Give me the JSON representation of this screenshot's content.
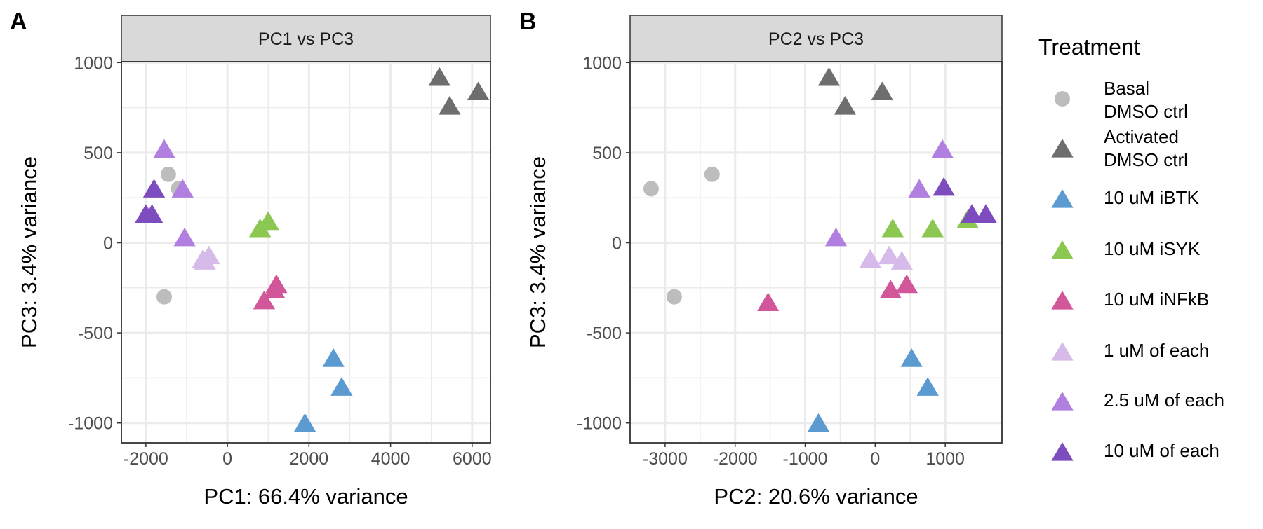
{
  "figure": {
    "colors": {
      "panel_border": "#333333",
      "strip_fill": "#d9d9d9",
      "grid": "#ebebeb",
      "tick_label": "#4d4d4d"
    }
  },
  "legend": {
    "title": "Treatment",
    "items": [
      {
        "key": "basal",
        "lines": [
          "Basal",
          "DMSO ctrl"
        ],
        "shape": "circle",
        "color": "#bdbdbd"
      },
      {
        "key": "activated",
        "lines": [
          "Activated",
          "DMSO ctrl"
        ],
        "shape": "triangle",
        "color": "#6e6e6e"
      },
      {
        "key": "ibtk",
        "lines": [
          "10 uM iBTK"
        ],
        "shape": "triangle",
        "color": "#5b9bd1"
      },
      {
        "key": "isyk",
        "lines": [
          "10 uM iSYK"
        ],
        "shape": "triangle",
        "color": "#8cc751"
      },
      {
        "key": "infkb",
        "lines": [
          "10 uM iNFkB"
        ],
        "shape": "triangle",
        "color": "#d1579a"
      },
      {
        "key": "one_each",
        "lines": [
          "1 uM of each"
        ],
        "shape": "triangle",
        "color": "#d6bbea"
      },
      {
        "key": "two5_each",
        "lines": [
          "2.5 uM of each"
        ],
        "shape": "triangle",
        "color": "#b07fe0"
      },
      {
        "key": "ten_each",
        "lines": [
          "10 uM of each"
        ],
        "shape": "triangle",
        "color": "#7d4cbf"
      }
    ]
  },
  "chart_data": [
    {
      "type": "scatter",
      "panel_label": "A",
      "title": "PC1 vs PC3",
      "xlabel": "PC1: 66.4% variance",
      "ylabel": "PC3: 3.4% variance",
      "xlim": [
        -2600,
        6450
      ],
      "ylim": [
        -1110,
        1005
      ],
      "xticks": [
        -2000,
        0,
        2000,
        4000,
        6000
      ],
      "xtick_labels": [
        "-2000",
        "0",
        "2000",
        "4000",
        "6000"
      ],
      "yticks": [
        1000,
        500,
        0,
        -500,
        -1000
      ],
      "ytick_labels": [
        "1000",
        "500",
        "0",
        "-500",
        "-1000"
      ],
      "grid": true,
      "series": [
        {
          "key": "basal",
          "points": [
            [
              -1450,
              380
            ],
            [
              -1200,
              300
            ],
            [
              -1550,
              -300
            ]
          ]
        },
        {
          "key": "activated",
          "points": [
            [
              5200,
              920
            ],
            [
              5450,
              760
            ],
            [
              6150,
              840
            ]
          ]
        },
        {
          "key": "ibtk",
          "points": [
            [
              2600,
              -640
            ],
            [
              2800,
              -800
            ],
            [
              1900,
              -1000
            ]
          ]
        },
        {
          "key": "isyk",
          "points": [
            [
              800,
              80
            ],
            [
              1000,
              120
            ]
          ]
        },
        {
          "key": "infkb",
          "points": [
            [
              1200,
              -230
            ],
            [
              1150,
              -260
            ],
            [
              900,
              -320
            ]
          ]
        },
        {
          "key": "one_each",
          "points": [
            [
              -600,
              -90
            ],
            [
              -450,
              -70
            ],
            [
              -550,
              -100
            ]
          ]
        },
        {
          "key": "two5_each",
          "points": [
            [
              -1550,
              520
            ],
            [
              -1100,
              300
            ],
            [
              -1050,
              30
            ]
          ]
        },
        {
          "key": "ten_each",
          "points": [
            [
              -1800,
              300
            ],
            [
              -2000,
              160
            ],
            [
              -1850,
              160
            ]
          ]
        }
      ]
    },
    {
      "type": "scatter",
      "panel_label": "B",
      "title": "PC2 vs PC3",
      "xlabel": "PC2: 20.6% variance",
      "ylabel": "PC3: 3.4% variance",
      "xlim": [
        -3500,
        1810
      ],
      "ylim": [
        -1110,
        1005
      ],
      "xticks": [
        -3000,
        -2000,
        -1000,
        0,
        1000
      ],
      "xtick_labels": [
        "-3000",
        "-2000",
        "-1000",
        "0",
        "1000"
      ],
      "yticks": [
        1000,
        500,
        0,
        -500,
        -1000
      ],
      "ytick_labels": [
        "1000",
        "500",
        "0",
        "-500",
        "-1000"
      ],
      "grid": true,
      "series": [
        {
          "key": "basal",
          "points": [
            [
              -2330,
              380
            ],
            [
              -3200,
              300
            ],
            [
              -2870,
              -300
            ]
          ]
        },
        {
          "key": "activated",
          "points": [
            [
              -660,
              920
            ],
            [
              -430,
              760
            ],
            [
              100,
              840
            ]
          ]
        },
        {
          "key": "ibtk",
          "points": [
            [
              520,
              -640
            ],
            [
              750,
              -800
            ],
            [
              -810,
              -1000
            ]
          ]
        },
        {
          "key": "isyk",
          "points": [
            [
              250,
              80
            ],
            [
              820,
              80
            ],
            [
              1320,
              130
            ]
          ]
        },
        {
          "key": "infkb",
          "points": [
            [
              -1530,
              -330
            ],
            [
              220,
              -260
            ],
            [
              450,
              -230
            ]
          ]
        },
        {
          "key": "one_each",
          "points": [
            [
              -70,
              -90
            ],
            [
              200,
              -70
            ],
            [
              380,
              -100
            ]
          ]
        },
        {
          "key": "two5_each",
          "points": [
            [
              960,
              520
            ],
            [
              630,
              300
            ],
            [
              -560,
              30
            ]
          ]
        },
        {
          "key": "ten_each",
          "points": [
            [
              980,
              310
            ],
            [
              1380,
              160
            ],
            [
              1580,
              160
            ]
          ]
        }
      ]
    }
  ]
}
